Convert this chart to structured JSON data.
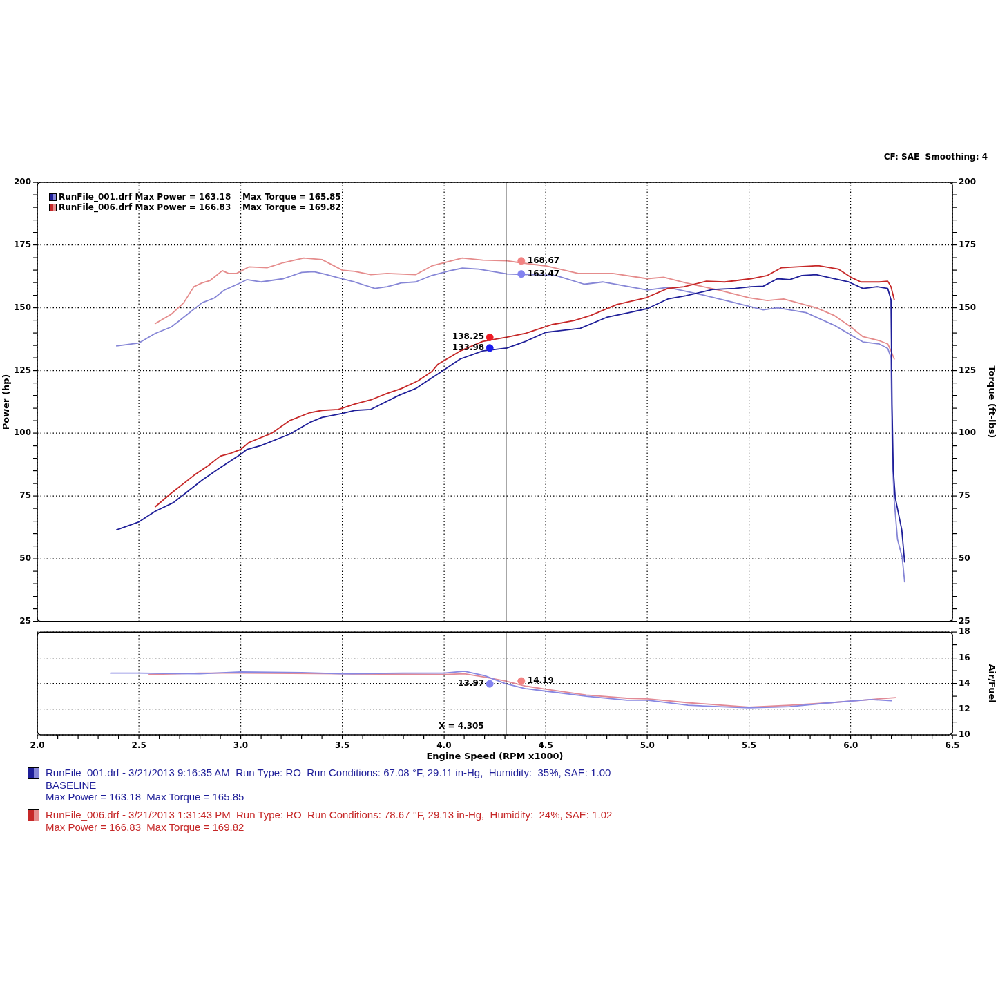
{
  "chart_data": [
    {
      "type": "line",
      "xlim": [
        2,
        6.5
      ],
      "xticks": [
        2,
        2.5,
        3,
        3.5,
        4,
        4.5,
        5,
        5.5,
        6,
        6.5
      ],
      "ylabel": "Power (hp)",
      "ylim": [
        25,
        200
      ],
      "yticks": [
        25,
        {
          "value": 30,
          "label": null
        },
        {
          "value": 35,
          "label": null
        },
        {
          "value": 40,
          "label": null
        },
        {
          "value": 45,
          "label": null
        },
        50,
        {
          "value": 55,
          "label": null
        },
        {
          "value": 60,
          "label": null
        },
        {
          "value": 65,
          "label": null
        },
        {
          "value": 70,
          "label": null
        },
        75,
        {
          "value": 80,
          "label": null
        },
        {
          "value": 85,
          "label": null
        },
        {
          "value": 90,
          "label": null
        },
        {
          "value": 95,
          "label": null
        },
        100,
        {
          "value": 105,
          "label": null
        },
        {
          "value": 110,
          "label": null
        },
        {
          "value": 115,
          "label": null
        },
        {
          "value": 120,
          "label": null
        },
        125,
        {
          "value": 130,
          "label": null
        },
        {
          "value": 135,
          "label": null
        },
        {
          "value": 140,
          "label": null
        },
        {
          "value": 145,
          "label": null
        },
        150,
        {
          "value": 155,
          "label": null
        },
        {
          "value": 160,
          "label": null
        },
        {
          "value": 165,
          "label": null
        },
        {
          "value": 170,
          "label": null
        },
        175,
        {
          "value": 180,
          "label": null
        },
        {
          "value": 185,
          "label": null
        },
        {
          "value": 190,
          "label": null
        },
        {
          "value": 195,
          "label": null
        },
        200
      ],
      "y2label": "Torque (ft-lbs)",
      "y2lim": [
        25,
        200
      ],
      "y2ticks": [
        25,
        {
          "value": 30,
          "label": null
        },
        {
          "value": 35,
          "label": null
        },
        {
          "value": 40,
          "label": null
        },
        {
          "value": 45,
          "label": null
        },
        50,
        {
          "value": 55,
          "label": null
        },
        {
          "value": 60,
          "label": null
        },
        {
          "value": 65,
          "label": null
        },
        {
          "value": 70,
          "label": null
        },
        75,
        {
          "value": 80,
          "label": null
        },
        {
          "value": 85,
          "label": null
        },
        {
          "value": 90,
          "label": null
        },
        {
          "value": 95,
          "label": null
        },
        100,
        {
          "value": 105,
          "label": null
        },
        {
          "value": 110,
          "label": null
        },
        {
          "value": 115,
          "label": null
        },
        {
          "value": 120,
          "label": null
        },
        125,
        {
          "value": 130,
          "label": null
        },
        {
          "value": 135,
          "label": null
        },
        {
          "value": 140,
          "label": null
        },
        {
          "value": 145,
          "label": null
        },
        150,
        {
          "value": 155,
          "label": null
        },
        {
          "value": 160,
          "label": null
        },
        {
          "value": 165,
          "label": null
        },
        {
          "value": 170,
          "label": null
        },
        175,
        {
          "value": 180,
          "label": null
        },
        {
          "value": 185,
          "label": null
        },
        {
          "value": 190,
          "label": null
        },
        {
          "value": 195,
          "label": null
        },
        200
      ],
      "tick_labels": "y",
      "grid": true,
      "legend": "top left",
      "ref_lines": [
        {
          "axis": "x",
          "value": 4.305,
          "color": "#000000"
        }
      ],
      "annotations": [
        "CF: SAE  Smoothing: 4"
      ],
      "series": [
        {
          "name": "RunFile_001.drf Max Power = 163.18    Max Torque = 165.85",
          "color": "#1f1f99",
          "axis": "y",
          "x": [
            2.39,
            2.5,
            2.58,
            2.67,
            2.73,
            2.81,
            2.89,
            3.0,
            3.03,
            3.1,
            3.24,
            3.34,
            3.4,
            3.5,
            3.56,
            3.64,
            3.78,
            3.86,
            3.92,
            3.98,
            4.08,
            4.19,
            4.31,
            4.4,
            4.5,
            4.56,
            4.67,
            4.8,
            4.91,
            5.0,
            5.1,
            5.19,
            5.32,
            5.43,
            5.51,
            5.57,
            5.64,
            5.7,
            5.76,
            5.83,
            5.92,
            5.99,
            6.06,
            6.13,
            6.182,
            6.198,
            6.203,
            6.209,
            6.219,
            6.235,
            6.251,
            6.265
          ],
          "values": [
            61.5,
            64.7,
            68.9,
            72.4,
            76.2,
            81.3,
            85.8,
            91.6,
            93.5,
            95.1,
            99.6,
            104.3,
            106.3,
            107.9,
            109.1,
            109.5,
            115.2,
            117.8,
            121.0,
            124.2,
            129.6,
            132.8,
            134.0,
            136.6,
            140.2,
            140.8,
            141.8,
            146.2,
            148.1,
            149.7,
            153.5,
            154.8,
            157.3,
            157.7,
            158.4,
            158.6,
            161.6,
            161.2,
            162.9,
            163.2,
            161.6,
            160.3,
            157.7,
            158.4,
            157.7,
            153.2,
            111.4,
            85.8,
            74.3,
            67.9,
            61.5,
            48.7
          ]
        },
        {
          "name": "RunFile_006.drf Max Power = 166.83    Max Torque = 169.82",
          "color": "#c62828",
          "axis": "y",
          "x": [
            2.58,
            2.66,
            2.77,
            2.84,
            2.9,
            2.95,
            3.0,
            3.04,
            3.15,
            3.24,
            3.34,
            3.4,
            3.48,
            3.56,
            3.64,
            3.72,
            3.79,
            3.87,
            3.94,
            3.97,
            4.08,
            4.19,
            4.31,
            4.4,
            4.53,
            4.64,
            4.72,
            4.85,
            4.99,
            5.1,
            5.18,
            5.29,
            5.38,
            5.51,
            5.59,
            5.66,
            5.75,
            5.84,
            5.94,
            6.0,
            6.05,
            6.14,
            6.182,
            6.198,
            6.214
          ],
          "values": [
            70.7,
            76.2,
            83.2,
            87.1,
            90.9,
            92.0,
            93.5,
            96.3,
            99.9,
            105.0,
            108.2,
            109.1,
            109.5,
            111.6,
            113.3,
            115.9,
            117.8,
            120.8,
            124.6,
            127.5,
            132.8,
            136.6,
            138.3,
            139.8,
            143.3,
            144.9,
            146.9,
            151.3,
            153.9,
            157.7,
            158.4,
            160.6,
            160.3,
            161.6,
            162.9,
            166.0,
            166.4,
            166.8,
            165.4,
            162.2,
            160.3,
            160.3,
            160.6,
            158.4,
            153.2
          ]
        },
        {
          "color": "#8686d6",
          "axis": "y2",
          "x": [
            2.39,
            2.5,
            2.58,
            2.66,
            2.73,
            2.81,
            2.87,
            2.92,
            2.99,
            3.03,
            3.1,
            3.21,
            3.3,
            3.36,
            3.41,
            3.48,
            3.56,
            3.66,
            3.72,
            3.79,
            3.86,
            3.94,
            4.03,
            4.09,
            4.17,
            4.31,
            4.55,
            4.69,
            4.78,
            5.0,
            5.1,
            5.27,
            5.4,
            5.57,
            5.64,
            5.78,
            5.92,
            6.0,
            6.06,
            6.14,
            6.182,
            6.198,
            6.205,
            6.214,
            6.23,
            6.253,
            6.265
          ],
          "values": [
            134.8,
            136.0,
            139.8,
            142.4,
            146.9,
            152.0,
            153.9,
            157.1,
            159.6,
            161.2,
            160.3,
            161.6,
            164.1,
            164.4,
            163.5,
            162.0,
            160.3,
            157.7,
            158.4,
            159.9,
            160.3,
            162.9,
            164.8,
            165.8,
            165.4,
            163.5,
            162.9,
            159.4,
            160.3,
            157.1,
            158.1,
            155.2,
            152.6,
            149.2,
            150.0,
            148.1,
            143.0,
            139.2,
            136.4,
            135.6,
            133.8,
            130.2,
            90.0,
            73.0,
            57.7,
            50.6,
            40.8
          ]
        },
        {
          "color": "#e58c8c",
          "axis": "y2",
          "x": [
            2.58,
            2.66,
            2.72,
            2.77,
            2.81,
            2.85,
            2.91,
            2.94,
            2.98,
            3.04,
            3.13,
            3.21,
            3.31,
            3.4,
            3.5,
            3.56,
            3.64,
            3.72,
            3.86,
            3.94,
            4.0,
            4.09,
            4.19,
            4.31,
            4.37,
            4.5,
            4.66,
            4.83,
            5.0,
            5.08,
            5.19,
            5.35,
            5.5,
            5.59,
            5.67,
            5.83,
            5.92,
            6.0,
            6.06,
            6.14,
            6.182,
            6.198,
            6.214
          ],
          "values": [
            143.7,
            147.5,
            152.0,
            158.4,
            159.9,
            160.9,
            164.8,
            163.7,
            163.7,
            166.3,
            166.0,
            168.0,
            169.8,
            169.2,
            165.0,
            164.5,
            163.2,
            163.7,
            163.2,
            166.7,
            168.0,
            169.8,
            169.0,
            168.7,
            168.0,
            166.7,
            163.7,
            163.7,
            161.6,
            162.2,
            159.9,
            157.1,
            154.0,
            152.9,
            153.5,
            150.0,
            146.9,
            142.4,
            138.5,
            136.9,
            135.6,
            132.8,
            129.6
          ]
        },
        {
          "type": "scatter",
          "marker": "circle",
          "axis": "y",
          "x": [
            4.225,
            4.225
          ],
          "values": [
            138.25,
            133.98
          ],
          "colors": [
            "#ee1b24",
            "#1b1bee"
          ],
          "value_labels": [
            "138.25",
            "133.98"
          ]
        },
        {
          "type": "scatter",
          "marker": "circle",
          "axis": "y2",
          "x": [
            4.38,
            4.38
          ],
          "values": [
            168.67,
            163.47
          ],
          "colors": [
            "#f28282",
            "#8282f0"
          ],
          "value_labels": [
            "168.67",
            "163.47"
          ]
        }
      ]
    },
    {
      "type": "line",
      "xlabel": "Engine Speed (RPM x1000)",
      "xlim": [
        2,
        6.5
      ],
      "xticks": [
        {
          "value": 2,
          "label": "2.0"
        },
        {
          "value": 2.1,
          "label": null
        },
        {
          "value": 2.2,
          "label": null
        },
        {
          "value": 2.3,
          "label": null
        },
        {
          "value": 2.4,
          "label": null
        },
        2.5,
        {
          "value": 2.6,
          "label": null
        },
        {
          "value": 2.7,
          "label": null
        },
        {
          "value": 2.8,
          "label": null
        },
        {
          "value": 2.9,
          "label": null
        },
        {
          "value": 3,
          "label": "3.0"
        },
        {
          "value": 3.1,
          "label": null
        },
        {
          "value": 3.2,
          "label": null
        },
        {
          "value": 3.3,
          "label": null
        },
        {
          "value": 3.4,
          "label": null
        },
        3.5,
        {
          "value": 3.6,
          "label": null
        },
        {
          "value": 3.7,
          "label": null
        },
        {
          "value": 3.8,
          "label": null
        },
        {
          "value": 3.9,
          "label": null
        },
        {
          "value": 4,
          "label": "4.0"
        },
        {
          "value": 4.1,
          "label": null
        },
        {
          "value": 4.2,
          "label": null
        },
        {
          "value": 4.3,
          "label": null
        },
        {
          "value": 4.4,
          "label": null
        },
        4.5,
        {
          "value": 4.6,
          "label": null
        },
        {
          "value": 4.7,
          "label": null
        },
        {
          "value": 4.8,
          "label": null
        },
        {
          "value": 4.9,
          "label": null
        },
        {
          "value": 5,
          "label": "5.0"
        },
        {
          "value": 5.1,
          "label": null
        },
        {
          "value": 5.2,
          "label": null
        },
        {
          "value": 5.3,
          "label": null
        },
        {
          "value": 5.4,
          "label": null
        },
        5.5,
        {
          "value": 5.6,
          "label": null
        },
        {
          "value": 5.7,
          "label": null
        },
        {
          "value": 5.8,
          "label": null
        },
        {
          "value": 5.9,
          "label": null
        },
        {
          "value": 6,
          "label": "6.0"
        },
        {
          "value": 6.1,
          "label": null
        },
        {
          "value": 6.2,
          "label": null
        },
        {
          "value": 6.3,
          "label": null
        },
        {
          "value": 6.4,
          "label": null
        },
        6.5
      ],
      "ylabel": "Air/Fuel",
      "ylim": [
        10,
        18
      ],
      "yticks": [
        10,
        {
          "value": 11,
          "label": null
        },
        12,
        {
          "value": 13,
          "label": null
        },
        14,
        {
          "value": 15,
          "label": null
        },
        16,
        {
          "value": 17,
          "label": null
        },
        18
      ],
      "grid": true,
      "ref_lines": [
        {
          "axis": "x",
          "value": 4.305,
          "label": "X = 4.305",
          "color": "#000000"
        }
      ],
      "annotations": [
        "RunFile_001.drf - 3/21/2013 9:16:35 AM  Run Type: RO  Run Conditions: 67.08 °F, 29.11 in-Hg,  Humidity:  35%, SAE: 1.00\nBASELINE\nMax Power = 163.18  Max Torque = 165.85",
        "RunFile_006.drf - 3/21/2013 1:31:43 PM  Run Type: RO  Run Conditions: 78.67 °F, 29.13 in-Hg,  Humidity:  24%, SAE: 1.02\nMax Power = 166.83  Max Torque = 169.82"
      ],
      "series": [
        {
          "color": "#8888e2",
          "x": [
            2.36,
            2.5,
            2.8,
            3.0,
            3.3,
            3.5,
            3.8,
            4.0,
            4.1,
            4.2,
            4.3,
            4.4,
            4.5,
            4.7,
            4.9,
            5.0,
            5.2,
            5.5,
            5.7,
            5.9,
            6.1,
            6.2
          ],
          "values": [
            14.8,
            14.8,
            14.75,
            14.9,
            14.85,
            14.75,
            14.8,
            14.8,
            14.95,
            14.6,
            14.0,
            13.6,
            13.4,
            13.0,
            12.7,
            12.7,
            12.3,
            12.1,
            12.2,
            12.5,
            12.75,
            12.65
          ]
        },
        {
          "color": "#e28a96",
          "x": [
            2.55,
            2.8,
            3.0,
            3.5,
            4.0,
            4.1,
            4.2,
            4.3,
            4.4,
            4.5,
            4.7,
            4.9,
            5.0,
            5.2,
            5.5,
            5.7,
            5.9,
            6.1,
            6.22
          ],
          "values": [
            14.7,
            14.8,
            14.8,
            14.75,
            14.7,
            14.75,
            14.5,
            14.2,
            13.8,
            13.55,
            13.1,
            12.85,
            12.8,
            12.5,
            12.15,
            12.3,
            12.5,
            12.75,
            12.9
          ]
        },
        {
          "type": "scatter",
          "marker": "circle",
          "x": [
            4.225,
            4.38
          ],
          "values": [
            13.97,
            14.19
          ],
          "colors": [
            "#8282f0",
            "#f28282"
          ],
          "value_labels": [
            "13.97",
            "14.19"
          ]
        }
      ]
    }
  ]
}
